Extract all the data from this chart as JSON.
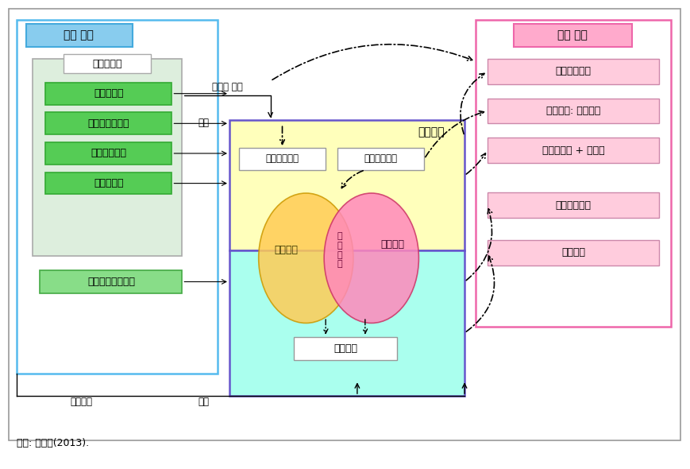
{
  "source_text": "자료: 강상경(2013).",
  "mgmt_box_label": "관리 부서",
  "fund_box_label": "재원 조달",
  "bokjubu_label": "보건복지부",
  "green_boxes": [
    "정신건강팀",
    "기초의료보장팀",
    "장애인정책팀",
    "보험급여팀"
  ],
  "nhis_label": "국민건강보험공단",
  "jiyeok_label": "지역사회",
  "mental_center_label": "정신보건센터",
  "social_welfare_label": "사회복귀시설",
  "medical_org_label": "의료기관",
  "circle_left_label": "의료급여",
  "circle_right_label": "건강보험",
  "circle_center_label": "장\n애\n등\n록",
  "fund_items": [
    "건강증진기금",
    "장애수당: 국고보조",
    "분권교부세 + 지방비",
    "국민건강보험",
    "의료급여"
  ],
  "arrow_label_service": "서비스 전반",
  "arrow_label_jigup1": "지급",
  "arrow_label_jigup2": "지급",
  "arrow_label_gijun": "기준설정",
  "bg_color": "#ffffff",
  "outer_border_color": "#999999",
  "mgmt_header_color": "#88ccee",
  "mgmt_header_border": "#44aadd",
  "mgmt_box_border": "#55bbee",
  "fund_header_color": "#ffaacc",
  "fund_header_border": "#ee66aa",
  "fund_box_border": "#ee66aa",
  "bokjubu_box_color": "#ddeedd",
  "bokjubu_box_border": "#aaaaaa",
  "bokjubu_label_box_color": "#ffffff",
  "green_box_color": "#55cc55",
  "green_box_border": "#33aa33",
  "nhis_box_color": "#88dd88",
  "nhis_box_border": "#44aa44",
  "region_top_color": "#ffffbb",
  "region_bot_color": "#aaffee",
  "region_border_color": "#6655cc",
  "mental_box_color": "#ffffff",
  "mental_box_border": "#999999",
  "social_box_color": "#ffffff",
  "social_box_border": "#999999",
  "fund_item_color": "#ffccdd",
  "fund_item_border": "#cc88aa",
  "circle_left_color": "#ffcc55",
  "circle_left_edge": "#cc9900",
  "circle_right_color": "#ff88bb",
  "circle_right_edge": "#cc3366",
  "medical_box_color": "#ffffff",
  "medical_box_border": "#999999"
}
